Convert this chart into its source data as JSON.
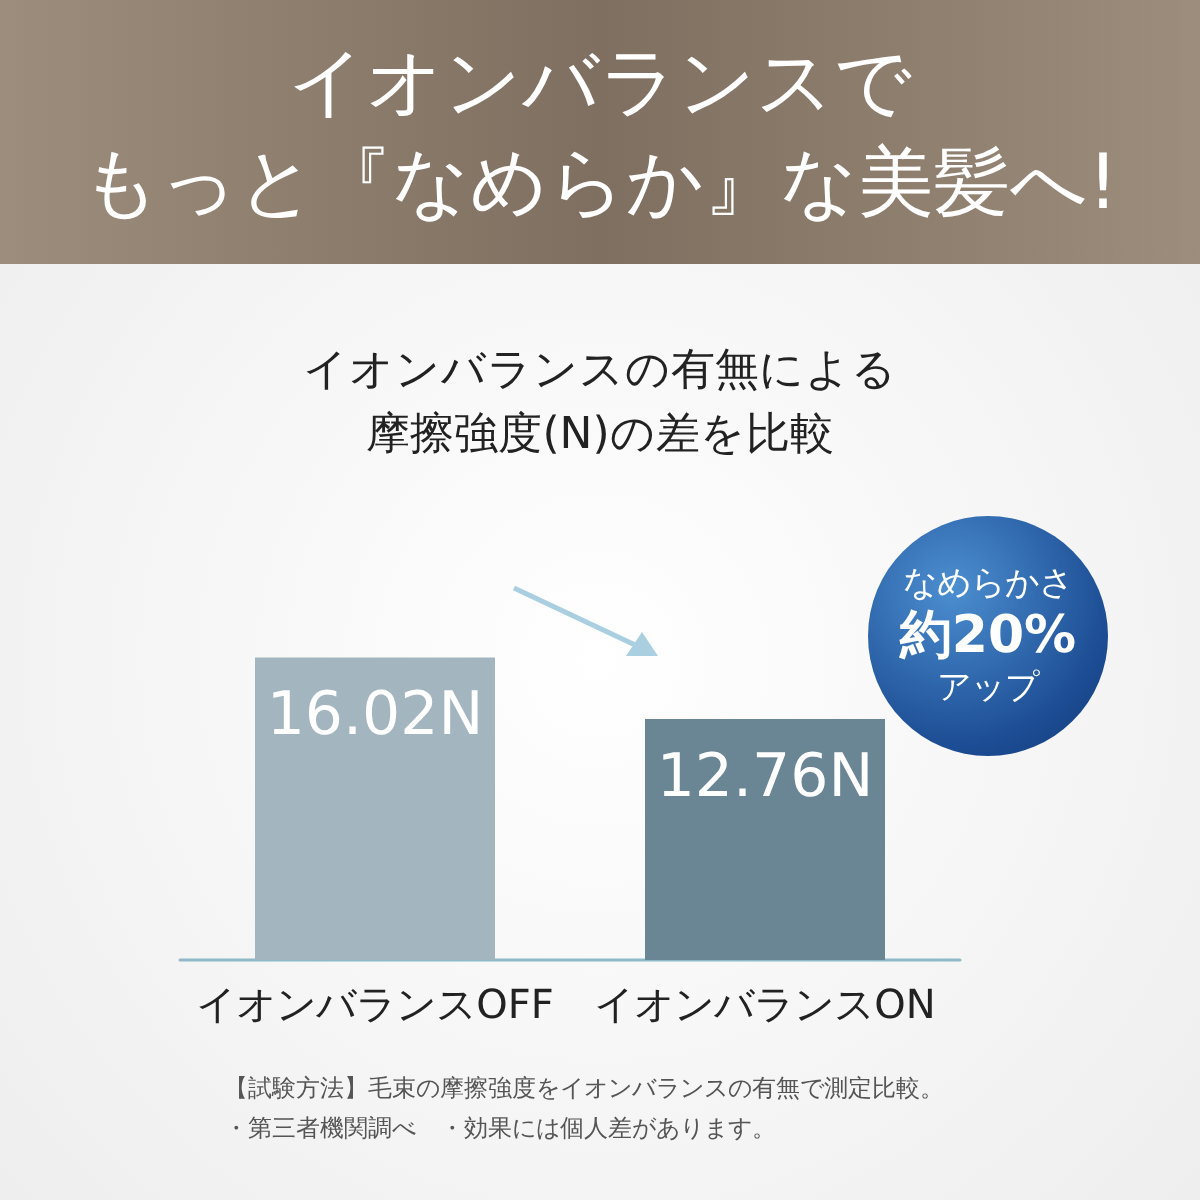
{
  "chart_data": {
    "type": "bar",
    "title": "イオンバランスで",
    "subtitle": "もっと『なめらか』な美髪へ!",
    "categories": [
      "イオンバランスOFF",
      "イオンバランスON"
    ],
    "values": [
      16.02,
      12.76
    ],
    "colors": [
      "#a3b5bf",
      "#6a8593"
    ],
    "value_labels": [
      "16.02N",
      "12.76N"
    ],
    "annotations": [
      "イオンバランスの有無による摩擦強度(N)の差を比較",
      "なめらかさ",
      "約20%",
      "アップ",
      "【試験方法】毛束の摩擦強度をイオンバランスの有無で測定比較。",
      "・第三者機関調べ　・効果には個人差があります。"
    ]
  }
}
